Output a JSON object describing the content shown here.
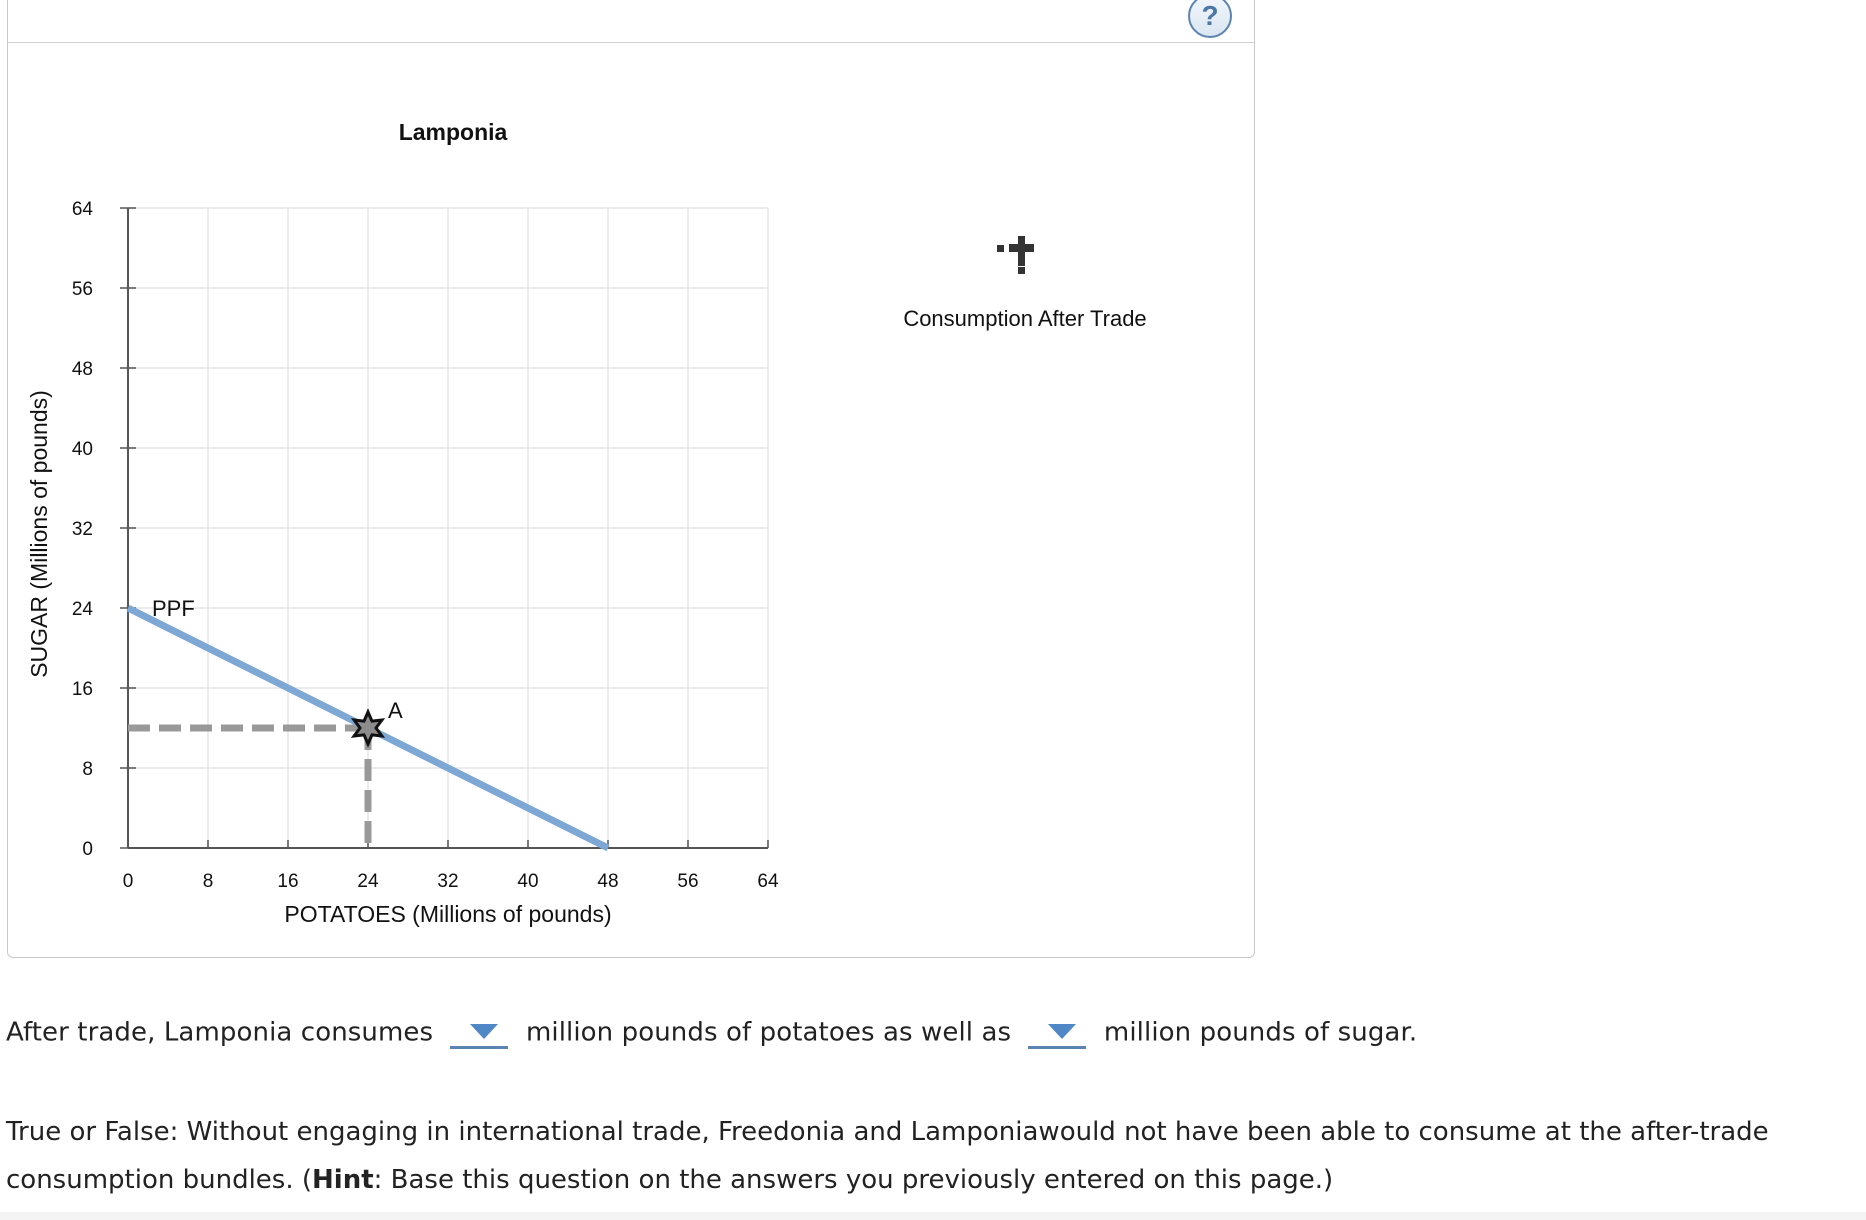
{
  "graph": {
    "title": "Lamponia",
    "xlabel": "POTATOES (Millions of pounds)",
    "ylabel": "SUGAR (Millions of pounds)",
    "ppf_label": "PPF",
    "point_label": "A"
  },
  "legend": {
    "label": "Consumption After Trade",
    "icon": "plus-cross-drag-icon"
  },
  "help": {
    "label": "?"
  },
  "question1": {
    "prefix": "After trade, Lamponia consumes",
    "middle": "million pounds of potatoes as well as",
    "suffix": "million pounds of sugar."
  },
  "question2": {
    "text_before_hint": "True or False: Without engaging in international trade, Freedonia and Lamponiawould not have been able to consume at the after-trade consumption bundles. (",
    "hint_label": "Hint",
    "text_after_hint": ": Base this question on the answers you previously entered on this page.)"
  },
  "colors": {
    "ppf": "#7da7d4",
    "dashed": "#999999",
    "dropdown_caret": "#4f87c7",
    "grid": "#e6e6e6"
  },
  "chart_data": {
    "type": "line",
    "title": "Lamponia",
    "xlabel": "POTATOES (Millions of pounds)",
    "ylabel": "SUGAR (Millions of pounds)",
    "xlim": [
      0,
      64
    ],
    "ylim": [
      0,
      64
    ],
    "x_ticks": [
      "0",
      "8",
      "16",
      "24",
      "32",
      "40",
      "48",
      "56",
      "64"
    ],
    "y_ticks": [
      "0",
      "8",
      "16",
      "24",
      "32",
      "40",
      "48",
      "56",
      "64"
    ],
    "grid": true,
    "series": [
      {
        "name": "PPF",
        "x": [
          0,
          48
        ],
        "y": [
          24,
          0
        ]
      }
    ],
    "points": [
      {
        "label": "A",
        "x": 24,
        "y": 12
      }
    ]
  }
}
